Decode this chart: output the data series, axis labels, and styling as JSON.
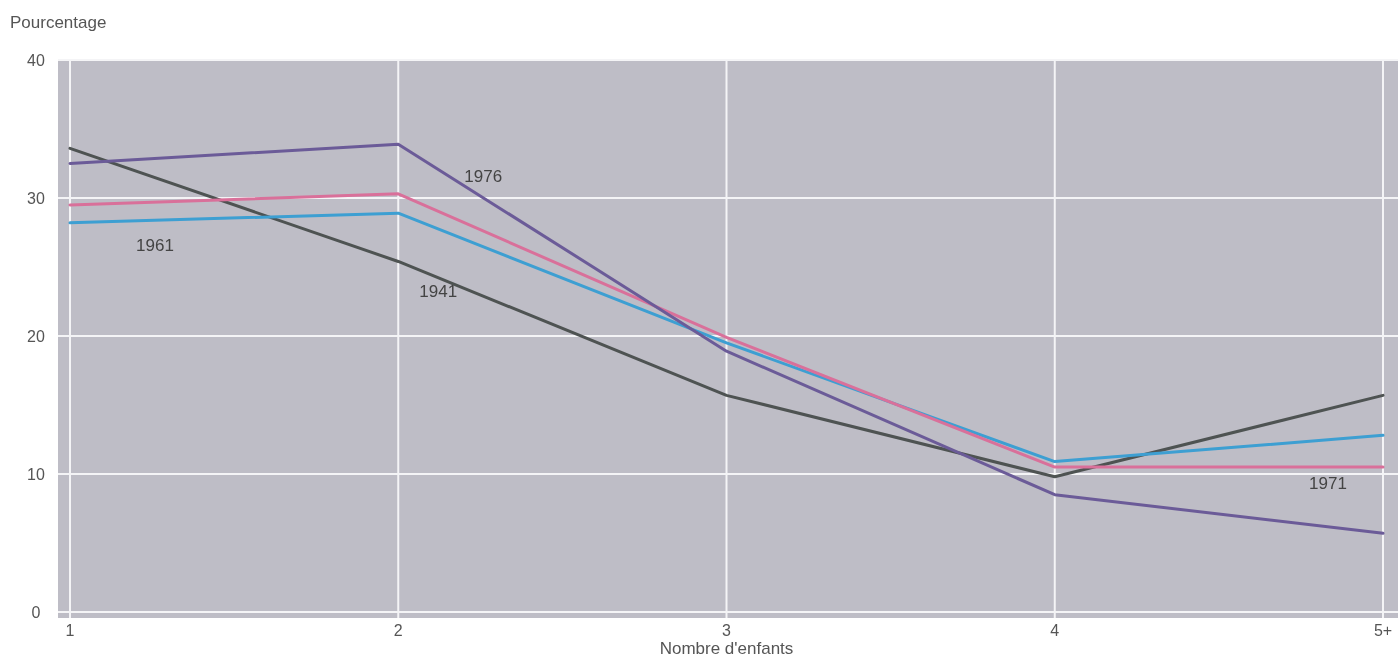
{
  "chart_data": {
    "type": "line",
    "xlabel": "Nombre d'enfants",
    "ylabel": "Pourcentage",
    "categories": [
      "1",
      "2",
      "3",
      "4",
      "5+"
    ],
    "ylim": [
      0,
      40
    ],
    "yticks": [
      0,
      10,
      20,
      30,
      40
    ],
    "grid": true,
    "marker": "none",
    "line_style": "solid",
    "series": [
      {
        "name": "1941",
        "color": "#4e5352",
        "values": [
          33.6,
          25.4,
          15.7,
          9.8,
          15.7
        ]
      },
      {
        "name": "1961",
        "color": "#3d9fd2",
        "values": [
          28.2,
          28.9,
          19.5,
          10.9,
          12.8
        ]
      },
      {
        "name": "1971",
        "color": "#d9709a",
        "values": [
          29.5,
          30.3,
          19.9,
          10.5,
          10.5
        ]
      },
      {
        "name": "1976",
        "color": "#6b5b98",
        "values": [
          32.5,
          33.9,
          18.9,
          8.5,
          5.7
        ]
      }
    ]
  }
}
